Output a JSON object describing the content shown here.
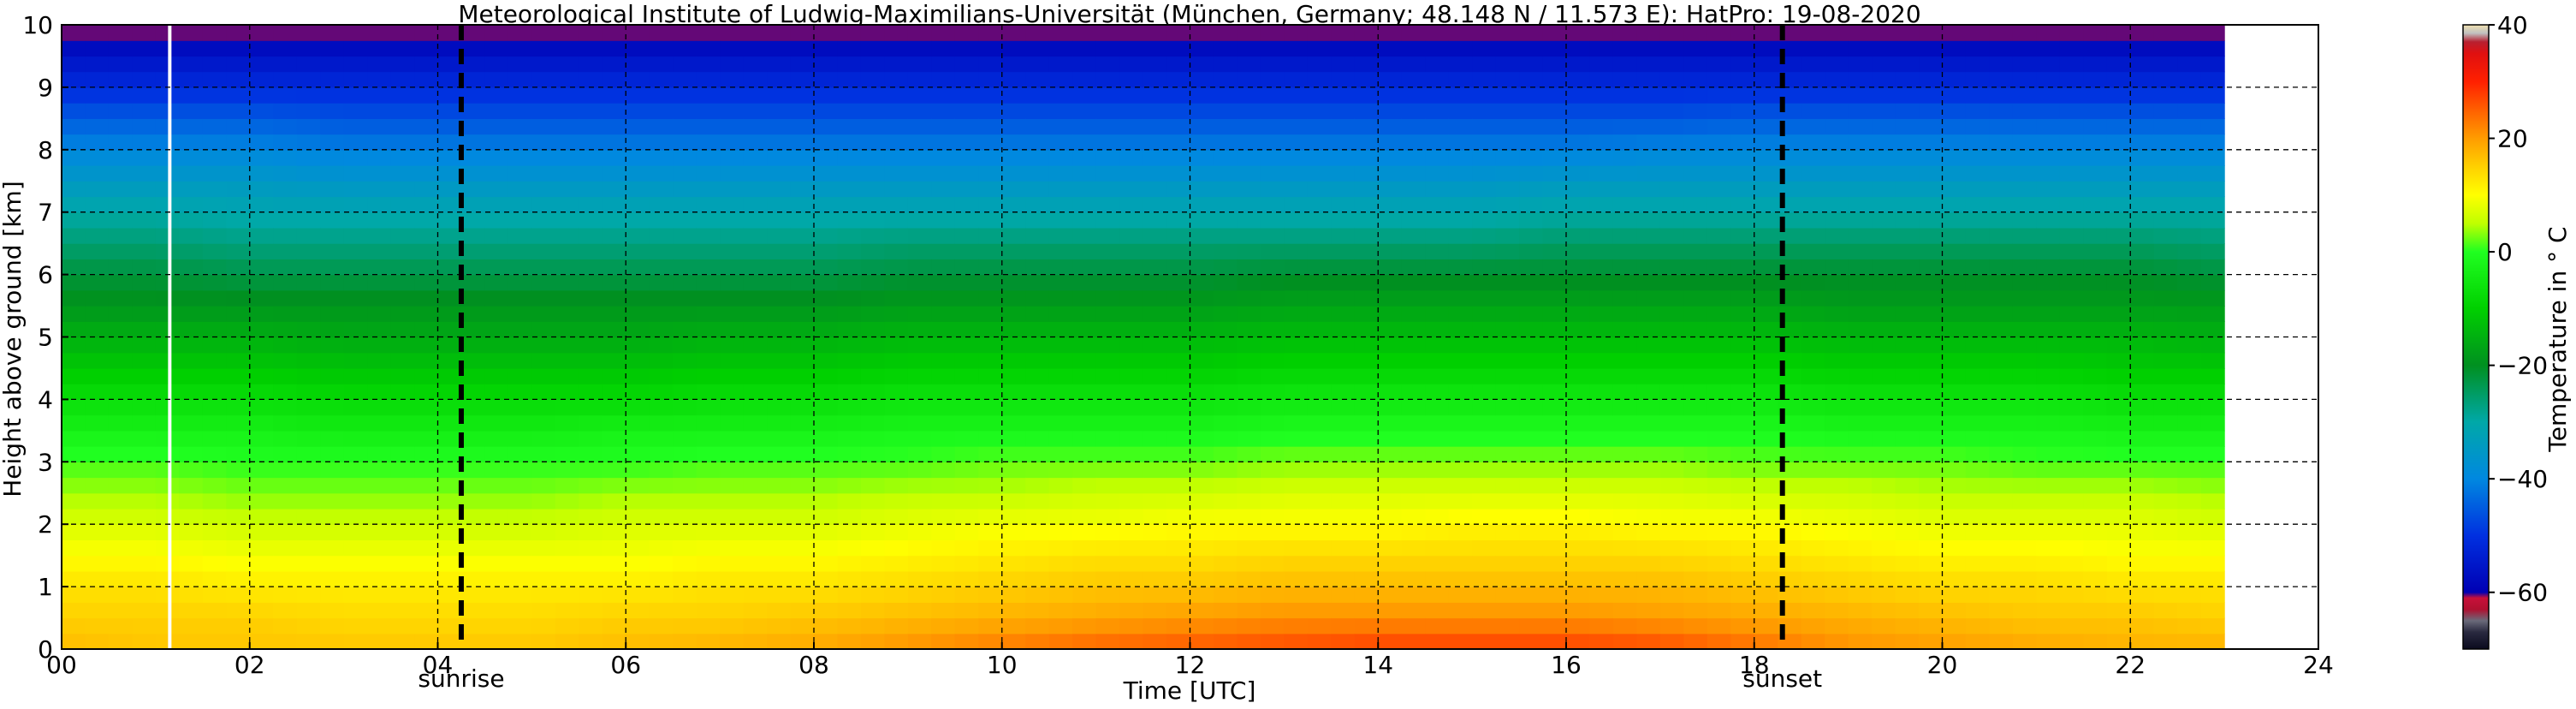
{
  "chart_data": {
    "type": "heatmap",
    "title": "Meteorological Institute of Ludwig-Maximilians-Universität (München, Germany; 48.148 N / 11.573 E):    HatPro: 19-08-2020",
    "xlabel": "Time [UTC]",
    "ylabel": "Height above ground [km]",
    "xlim": [
      0,
      24
    ],
    "ylim": [
      0,
      10
    ],
    "x_ticks": [
      0,
      2,
      4,
      6,
      8,
      10,
      12,
      14,
      16,
      18,
      20,
      22,
      24
    ],
    "x_tick_labels": [
      "00",
      "02",
      "04",
      "06",
      "08",
      "10",
      "12",
      "14",
      "16",
      "18",
      "20",
      "22",
      "24"
    ],
    "y_ticks": [
      0,
      1,
      2,
      3,
      4,
      5,
      6,
      7,
      8,
      9,
      10
    ],
    "y_tick_labels": [
      "0",
      "1",
      "2",
      "3",
      "4",
      "5",
      "6",
      "7",
      "8",
      "9",
      "10"
    ],
    "grid": true,
    "data_extent_x": [
      0,
      23
    ],
    "time_columns": [
      0,
      1,
      2,
      3,
      4,
      5,
      6,
      7,
      8,
      9,
      10,
      11,
      12,
      13,
      14,
      15,
      16,
      17,
      18,
      19,
      20,
      21,
      22,
      23
    ],
    "height_levels_km": [
      0,
      0.5,
      1,
      1.5,
      2,
      2.5,
      3,
      3.5,
      4,
      4.5,
      5,
      5.5,
      6,
      6.5,
      7,
      7.5,
      8,
      8.5,
      9,
      9.5,
      10
    ],
    "temperature_profiles_C": [
      [
        17,
        15,
        13,
        10,
        7,
        4,
        1,
        -3,
        -7,
        -11,
        -15,
        -19,
        -22,
        -26,
        -30,
        -35,
        -40,
        -45,
        -51,
        -56,
        -62
      ],
      [
        16,
        15,
        13,
        10,
        7,
        4,
        1,
        -3,
        -7,
        -11,
        -15,
        -19,
        -22,
        -26,
        -30,
        -35,
        -40,
        -45,
        -51,
        -56,
        -62
      ],
      [
        16,
        15,
        12,
        9,
        6,
        3,
        0,
        -3,
        -7,
        -11,
        -15,
        -19,
        -23,
        -27,
        -31,
        -35,
        -40,
        -45,
        -51,
        -56,
        -62
      ],
      [
        16,
        14,
        12,
        9,
        6,
        3,
        0,
        -4,
        -8,
        -12,
        -16,
        -19,
        -23,
        -27,
        -31,
        -36,
        -41,
        -46,
        -51,
        -56,
        -62
      ],
      [
        16,
        14,
        12,
        9,
        6,
        3,
        0,
        -4,
        -8,
        -12,
        -16,
        -19,
        -23,
        -27,
        -31,
        -36,
        -41,
        -46,
        -51,
        -56,
        -62
      ],
      [
        16,
        14,
        12,
        9,
        6,
        3,
        0,
        -4,
        -8,
        -12,
        -16,
        -19,
        -23,
        -27,
        -31,
        -36,
        -41,
        -46,
        -51,
        -56,
        -62
      ],
      [
        17,
        15,
        12,
        9,
        7,
        4,
        0,
        -3,
        -8,
        -12,
        -16,
        -19,
        -23,
        -27,
        -31,
        -36,
        -41,
        -46,
        -51,
        -56,
        -62
      ],
      [
        18,
        15,
        13,
        10,
        7,
        4,
        1,
        -3,
        -7,
        -11,
        -15,
        -19,
        -23,
        -27,
        -31,
        -36,
        -41,
        -46,
        -51,
        -56,
        -62
      ],
      [
        19,
        16,
        13,
        10,
        7,
        4,
        1,
        -3,
        -7,
        -11,
        -15,
        -19,
        -23,
        -27,
        -31,
        -36,
        -41,
        -46,
        -51,
        -56,
        -62
      ],
      [
        21,
        17,
        14,
        11,
        8,
        5,
        1,
        -2,
        -6,
        -10,
        -14,
        -18,
        -22,
        -26,
        -31,
        -36,
        -41,
        -46,
        -51,
        -56,
        -62
      ],
      [
        23,
        18,
        15,
        12,
        9,
        5,
        2,
        -2,
        -6,
        -10,
        -14,
        -18,
        -22,
        -26,
        -31,
        -36,
        -41,
        -46,
        -51,
        -56,
        -62
      ],
      [
        25,
        19,
        16,
        13,
        9,
        6,
        2,
        -2,
        -6,
        -10,
        -14,
        -18,
        -22,
        -26,
        -31,
        -36,
        -41,
        -46,
        -51,
        -56,
        -62
      ],
      [
        26,
        20,
        16,
        13,
        10,
        6,
        2,
        -2,
        -6,
        -10,
        -14,
        -18,
        -22,
        -26,
        -31,
        -36,
        -41,
        -46,
        -51,
        -56,
        -62
      ],
      [
        27,
        21,
        17,
        14,
        10,
        7,
        3,
        -1,
        -5,
        -9,
        -13,
        -17,
        -21,
        -26,
        -31,
        -36,
        -41,
        -46,
        -51,
        -56,
        -62
      ],
      [
        28,
        21,
        17,
        14,
        10,
        7,
        3,
        -1,
        -5,
        -9,
        -13,
        -17,
        -21,
        -26,
        -31,
        -36,
        -41,
        -46,
        -51,
        -56,
        -62
      ],
      [
        28,
        21,
        17,
        14,
        11,
        7,
        3,
        -1,
        -5,
        -9,
        -13,
        -17,
        -21,
        -26,
        -31,
        -36,
        -41,
        -46,
        -51,
        -56,
        -62
      ],
      [
        28,
        21,
        17,
        14,
        11,
        7,
        3,
        -1,
        -5,
        -9,
        -13,
        -17,
        -21,
        -25,
        -30,
        -35,
        -41,
        -46,
        -51,
        -56,
        -62
      ],
      [
        27,
        20,
        17,
        14,
        10,
        7,
        3,
        -1,
        -5,
        -9,
        -13,
        -17,
        -21,
        -25,
        -30,
        -35,
        -40,
        -46,
        -51,
        -56,
        -62
      ],
      [
        24,
        19,
        16,
        13,
        10,
        6,
        2,
        -1,
        -5,
        -9,
        -13,
        -17,
        -21,
        -25,
        -30,
        -35,
        -40,
        -45,
        -51,
        -56,
        -62
      ],
      [
        21,
        18,
        15,
        12,
        9,
        6,
        2,
        -2,
        -6,
        -10,
        -14,
        -18,
        -21,
        -25,
        -30,
        -35,
        -40,
        -45,
        -51,
        -56,
        -62
      ],
      [
        20,
        17,
        14,
        11,
        8,
        5,
        2,
        -2,
        -6,
        -10,
        -14,
        -18,
        -21,
        -25,
        -30,
        -35,
        -40,
        -45,
        -51,
        -56,
        -62
      ],
      [
        19,
        16,
        14,
        11,
        8,
        5,
        1,
        -2,
        -6,
        -10,
        -14,
        -18,
        -21,
        -25,
        -30,
        -35,
        -40,
        -45,
        -51,
        -56,
        -62
      ],
      [
        18,
        16,
        13,
        10,
        8,
        5,
        1,
        -3,
        -7,
        -11,
        -14,
        -18,
        -21,
        -25,
        -30,
        -35,
        -40,
        -45,
        -51,
        -56,
        -62
      ],
      [
        18,
        15,
        13,
        10,
        7,
        4,
        1,
        -3,
        -7,
        -11,
        -15,
        -18,
        -22,
        -26,
        -30,
        -35,
        -40,
        -45,
        -51,
        -56,
        -62
      ]
    ],
    "data_gap_time": 1.15,
    "vertical_markers": [
      {
        "time": 4.25,
        "label": "sunrise"
      },
      {
        "time": 18.3,
        "label": "sunset"
      }
    ],
    "colorbar": {
      "label": "Temperature in $^\\circ$C",
      "label_display": "Temperature in ° C",
      "vmin": -70,
      "vmax": 40,
      "ticks": [
        -60,
        -40,
        -20,
        0,
        20,
        40
      ],
      "tick_labels": [
        "−60",
        "−40",
        "−20",
        "0",
        "20",
        "40"
      ],
      "colormap": [
        {
          "t": -70,
          "color": "#0a0a1e"
        },
        {
          "t": -67,
          "color": "#2a2a40"
        },
        {
          "t": -65,
          "color": "#6a6a7a"
        },
        {
          "t": -63,
          "color": "#b01030"
        },
        {
          "t": -61,
          "color": "#c8103a"
        },
        {
          "t": -60,
          "color": "#0000b4"
        },
        {
          "t": -50,
          "color": "#0030e0"
        },
        {
          "t": -40,
          "color": "#0088e0"
        },
        {
          "t": -30,
          "color": "#00a8a8"
        },
        {
          "t": -20,
          "color": "#009020"
        },
        {
          "t": -10,
          "color": "#00d000"
        },
        {
          "t": 0,
          "color": "#20ff20"
        },
        {
          "t": 5,
          "color": "#c0ff00"
        },
        {
          "t": 10,
          "color": "#ffff00"
        },
        {
          "t": 15,
          "color": "#ffd000"
        },
        {
          "t": 20,
          "color": "#ff9c00"
        },
        {
          "t": 25,
          "color": "#ff6000"
        },
        {
          "t": 30,
          "color": "#ff2000"
        },
        {
          "t": 35,
          "color": "#e01010"
        },
        {
          "t": 37,
          "color": "#b82030"
        },
        {
          "t": 38.5,
          "color": "#c0c0c0"
        },
        {
          "t": 40,
          "color": "#f0e0b0"
        }
      ]
    }
  }
}
